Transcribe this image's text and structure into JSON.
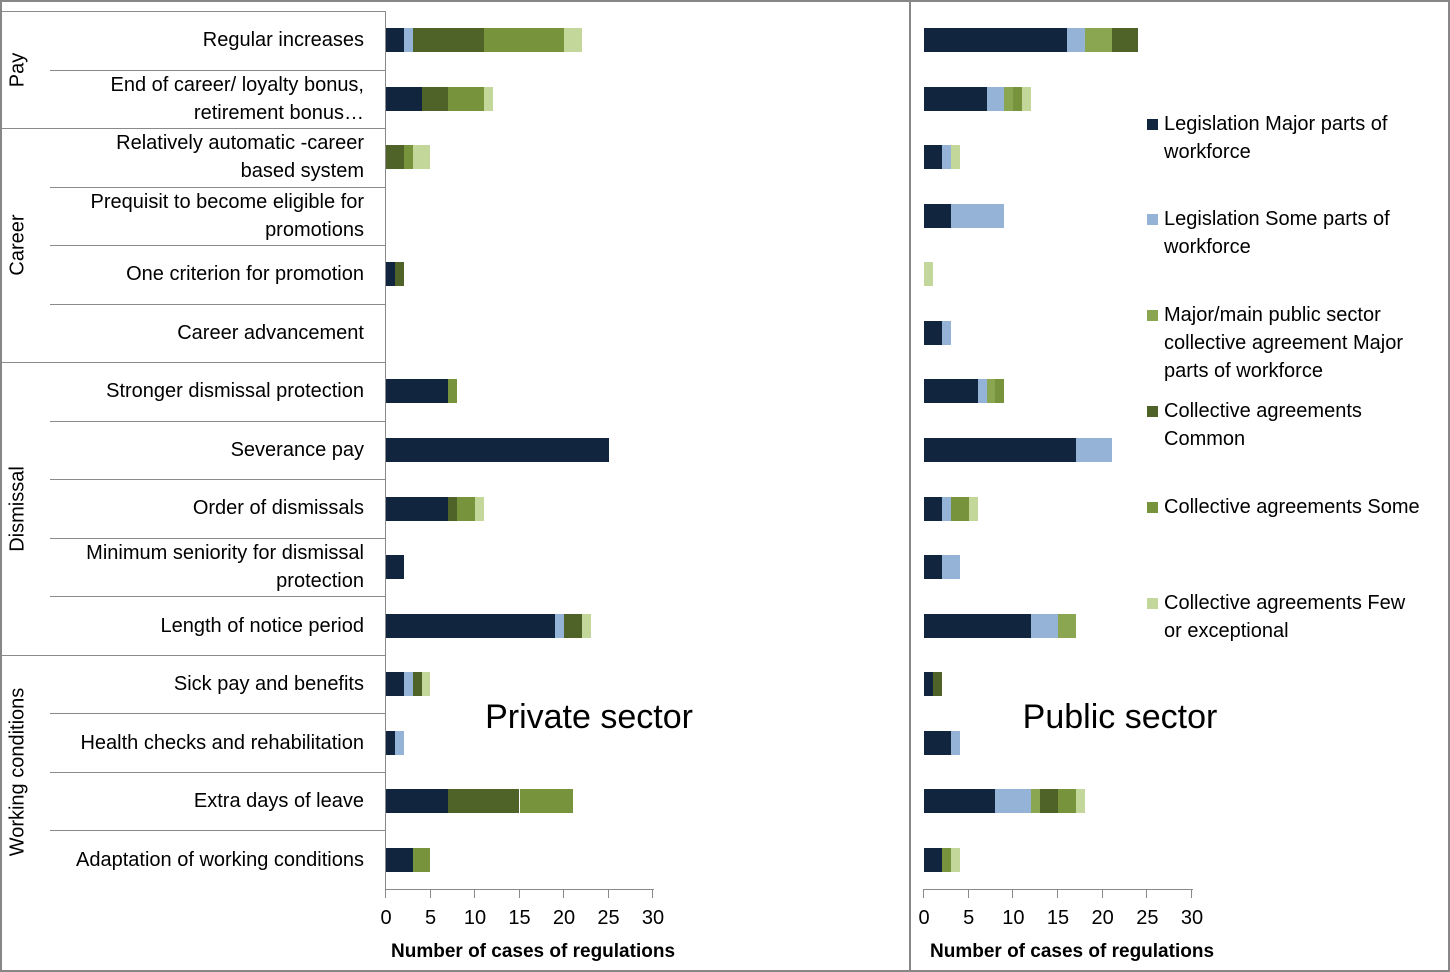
{
  "chart_data": [
    {
      "type": "bar",
      "orientation": "horizontal",
      "stacked": true,
      "title": "Private sector",
      "xlabel": "Number of cases of regulations",
      "xlim": [
        0,
        30
      ],
      "xticks": [
        0,
        5,
        10,
        15,
        20,
        25,
        30
      ],
      "grid": false,
      "series": [
        {
          "name": "Legislation Major parts of workforce",
          "color": "#11253F",
          "values": [
            2,
            4,
            0,
            0,
            1,
            0,
            7,
            25,
            7,
            2,
            19,
            2,
            1,
            7,
            3
          ]
        },
        {
          "name": "Legislation Some parts of workforce",
          "color": "#95B3D7",
          "values": [
            1,
            0,
            0,
            0,
            0,
            0,
            0,
            0,
            0,
            0,
            1,
            1,
            1,
            0,
            0
          ]
        },
        {
          "name": "Major/main public sector collective agreement Major parts of workforce",
          "color": "#8BA650",
          "values": [
            0,
            0,
            0,
            0,
            0,
            0,
            0,
            0,
            0,
            0,
            0,
            0,
            0,
            0,
            0
          ]
        },
        {
          "name": "Collective agreements Common",
          "color": "#4F6228",
          "values": [
            8,
            3,
            2,
            0,
            1,
            0,
            0,
            0,
            1,
            0,
            2,
            1,
            0,
            8,
            0
          ]
        },
        {
          "name": "Collective agreements Some",
          "color": "#77933C",
          "values": [
            9,
            4,
            1,
            0,
            0,
            0,
            1,
            0,
            2,
            0,
            0,
            0,
            0,
            6,
            2
          ]
        },
        {
          "name": "Collective agreements Few or exceptional",
          "color": "#C4D79B",
          "values": [
            2,
            1,
            2,
            0,
            0,
            0,
            0,
            0,
            1,
            0,
            1,
            1,
            0,
            0,
            0
          ]
        }
      ]
    },
    {
      "type": "bar",
      "orientation": "horizontal",
      "stacked": true,
      "title": "Public sector",
      "xlabel": "Number of cases of regulations",
      "xlim": [
        0,
        30
      ],
      "xticks": [
        0,
        5,
        10,
        15,
        20,
        25,
        30
      ],
      "grid": false,
      "series": [
        {
          "name": "Legislation Major parts of workforce",
          "color": "#11253F",
          "values": [
            16,
            7,
            2,
            3,
            0,
            2,
            6,
            17,
            2,
            2,
            12,
            1,
            3,
            8,
            2
          ]
        },
        {
          "name": "Legislation Some parts of workforce",
          "color": "#95B3D7",
          "values": [
            2,
            2,
            1,
            6,
            0,
            1,
            1,
            4,
            1,
            2,
            3,
            0,
            1,
            4,
            0
          ]
        },
        {
          "name": "Major/main public sector collective agreement Major parts of workforce",
          "color": "#8BA650",
          "values": [
            3,
            1,
            0,
            0,
            0,
            0,
            1,
            0,
            0,
            0,
            2,
            0,
            0,
            1,
            0
          ]
        },
        {
          "name": "Collective agreements Common",
          "color": "#4F6228",
          "values": [
            3,
            0,
            0,
            0,
            0,
            0,
            0,
            0,
            0,
            0,
            0,
            1,
            0,
            2,
            0
          ]
        },
        {
          "name": "Collective agreements Some",
          "color": "#77933C",
          "values": [
            0,
            1,
            0,
            0,
            0,
            0,
            1,
            0,
            2,
            0,
            0,
            0,
            0,
            2,
            1
          ]
        },
        {
          "name": "Collective agreements Few or exceptional",
          "color": "#C4D79B",
          "values": [
            0,
            1,
            1,
            0,
            1,
            0,
            0,
            0,
            1,
            0,
            0,
            0,
            0,
            1,
            1
          ]
        }
      ]
    }
  ],
  "categories": [
    "Regular increases",
    "End of career/ loyalty bonus,\nretirement bonus…",
    "Relatively automatic -career\nbased system",
    "Prequisit to become eligible for\npromotions",
    "One criterion for promotion",
    "Career advancement",
    "Stronger dismissal protection",
    "Severance pay",
    "Order of dismissals",
    "Minimum seniority for dismissal\nprotection",
    "Length of notice period",
    "Sick pay and benefits",
    "Health checks and rehabilitation",
    "Extra days of leave",
    "Adaptation of working conditions"
  ],
  "groups": [
    {
      "label": "Pay",
      "rows": 2
    },
    {
      "label": "Career",
      "rows": 4
    },
    {
      "label": "Dismissal",
      "rows": 5
    },
    {
      "label": "Working conditions",
      "rows": 4
    }
  ],
  "legend": {
    "placement": "right",
    "items": [
      {
        "label": "Legislation Major parts of\nworkforce",
        "color": "#11253F"
      },
      {
        "label": "Legislation Some parts of\nworkforce",
        "color": "#95B3D7"
      },
      {
        "label": "Major/main public sector\ncollective agreement Major\nparts of workforce",
        "color": "#8BA650"
      },
      {
        "label": "Collective agreements\nCommon",
        "color": "#4F6228"
      },
      {
        "label": "Collective agreements Some",
        "color": "#77933C"
      },
      {
        "label": "Collective agreements Few\nor exceptional",
        "color": "#C4D79B"
      }
    ]
  }
}
